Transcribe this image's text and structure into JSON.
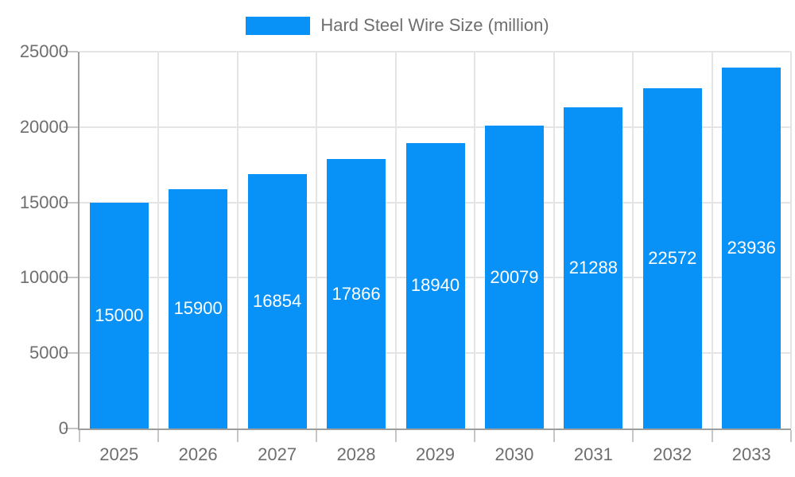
{
  "chart_data": {
    "type": "bar",
    "title": "Hard Steel Wire Size (million)",
    "categories": [
      "2025",
      "2026",
      "2027",
      "2028",
      "2029",
      "2030",
      "2031",
      "2032",
      "2033"
    ],
    "series": [
      {
        "name": "Hard Steel Wire Size (million)",
        "values": [
          15000,
          15900,
          16854,
          17866,
          18940,
          20079,
          21288,
          22572,
          23936
        ]
      }
    ],
    "value_labels": [
      "15000",
      "15900",
      "16854",
      "17866",
      "18940",
      "20079",
      "21288",
      "22572",
      "23936"
    ],
    "xlabel": "",
    "ylabel": "",
    "ylim": [
      0,
      25000
    ],
    "y_ticks": [
      0,
      5000,
      10000,
      15000,
      20000,
      25000
    ],
    "y_tick_labels": [
      "0",
      "5000",
      "10000",
      "15000",
      "20000",
      "25000"
    ],
    "grid": true,
    "legend_position": "top-center",
    "colors": {
      "bar_fill": "#0892f8",
      "value_label_text": "#ffffff",
      "axis_text": "#6e6e6e",
      "gridline": "#e4e4e4",
      "axis_line": "#9e9e9e",
      "tick_mark": "#c6c6c6",
      "background": "#ffffff"
    }
  }
}
